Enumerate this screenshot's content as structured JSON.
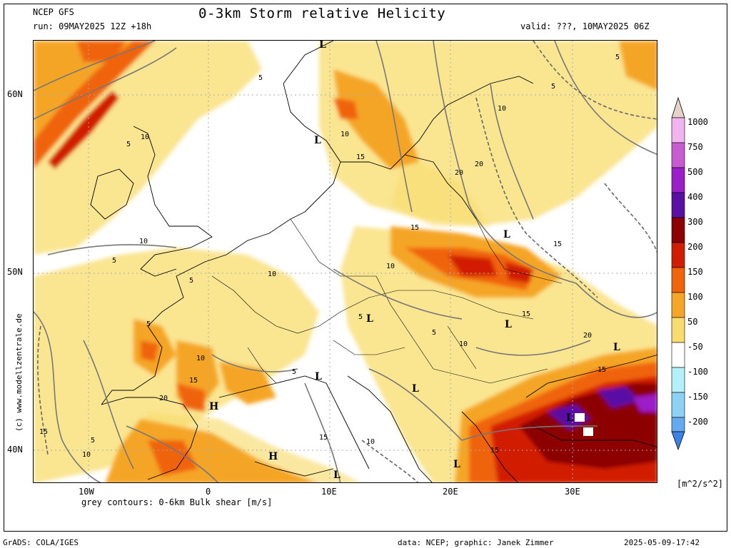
{
  "header": {
    "model": "NCEP GFS",
    "run": "run: 09MAY2025 12Z +18h",
    "title": "0-3km Storm relative Helicity",
    "valid": "valid: ???, 10MAY2025 06Z"
  },
  "map": {
    "lat_labels": [
      "60N",
      "50N",
      "40N"
    ],
    "lon_labels": [
      "10W",
      "0",
      "10E",
      "20E",
      "30E"
    ],
    "contour_labels": [
      "5",
      "10",
      "5",
      "10",
      "15",
      "20",
      "20",
      "10",
      "5",
      "5",
      "15",
      "15",
      "10",
      "10",
      "5",
      "10",
      "15",
      "5",
      "5",
      "5",
      "10",
      "5",
      "15",
      "20",
      "20",
      "15",
      "15",
      "10",
      "15",
      "10",
      "15",
      "5",
      "10",
      "5"
    ],
    "highs": [
      "H",
      "H"
    ],
    "lows": [
      "L",
      "L",
      "L",
      "L",
      "L",
      "L",
      "L",
      "L",
      "L",
      "L",
      "L"
    ],
    "legend_note": "grey contours: 0-6km Bulk shear [m/s]"
  },
  "colorbar": {
    "levels": [
      "1000",
      "750",
      "500",
      "400",
      "300",
      "200",
      "150",
      "100",
      "50",
      "-50",
      "-100",
      "-150",
      "-200"
    ],
    "colors": {
      "top_cap": "#e6d2c8",
      "1000": "#f0b4f0",
      "750": "#c85ad2",
      "500": "#9b1fc8",
      "400": "#5a0fa5",
      "300": "#8c0000",
      "200": "#d21e00",
      "150": "#f0640a",
      "100": "#f5a528",
      "50": "#f8dc6e",
      "white": "#f5f0b4",
      "-50": "#ffffff",
      "-100": "#b4f0fa",
      "-150": "#8cd2f5",
      "-200": "#64aaf0",
      "bottom": "#3c82e6"
    },
    "units": "[m^2/s^2]"
  },
  "credits": {
    "side": "(c) www.modellzentrale.de",
    "grads": "GrADS: COLA/IGES",
    "data": "data: NCEP; graphic: Janek Zimmer",
    "timestamp": "2025-05-09-17:42"
  }
}
